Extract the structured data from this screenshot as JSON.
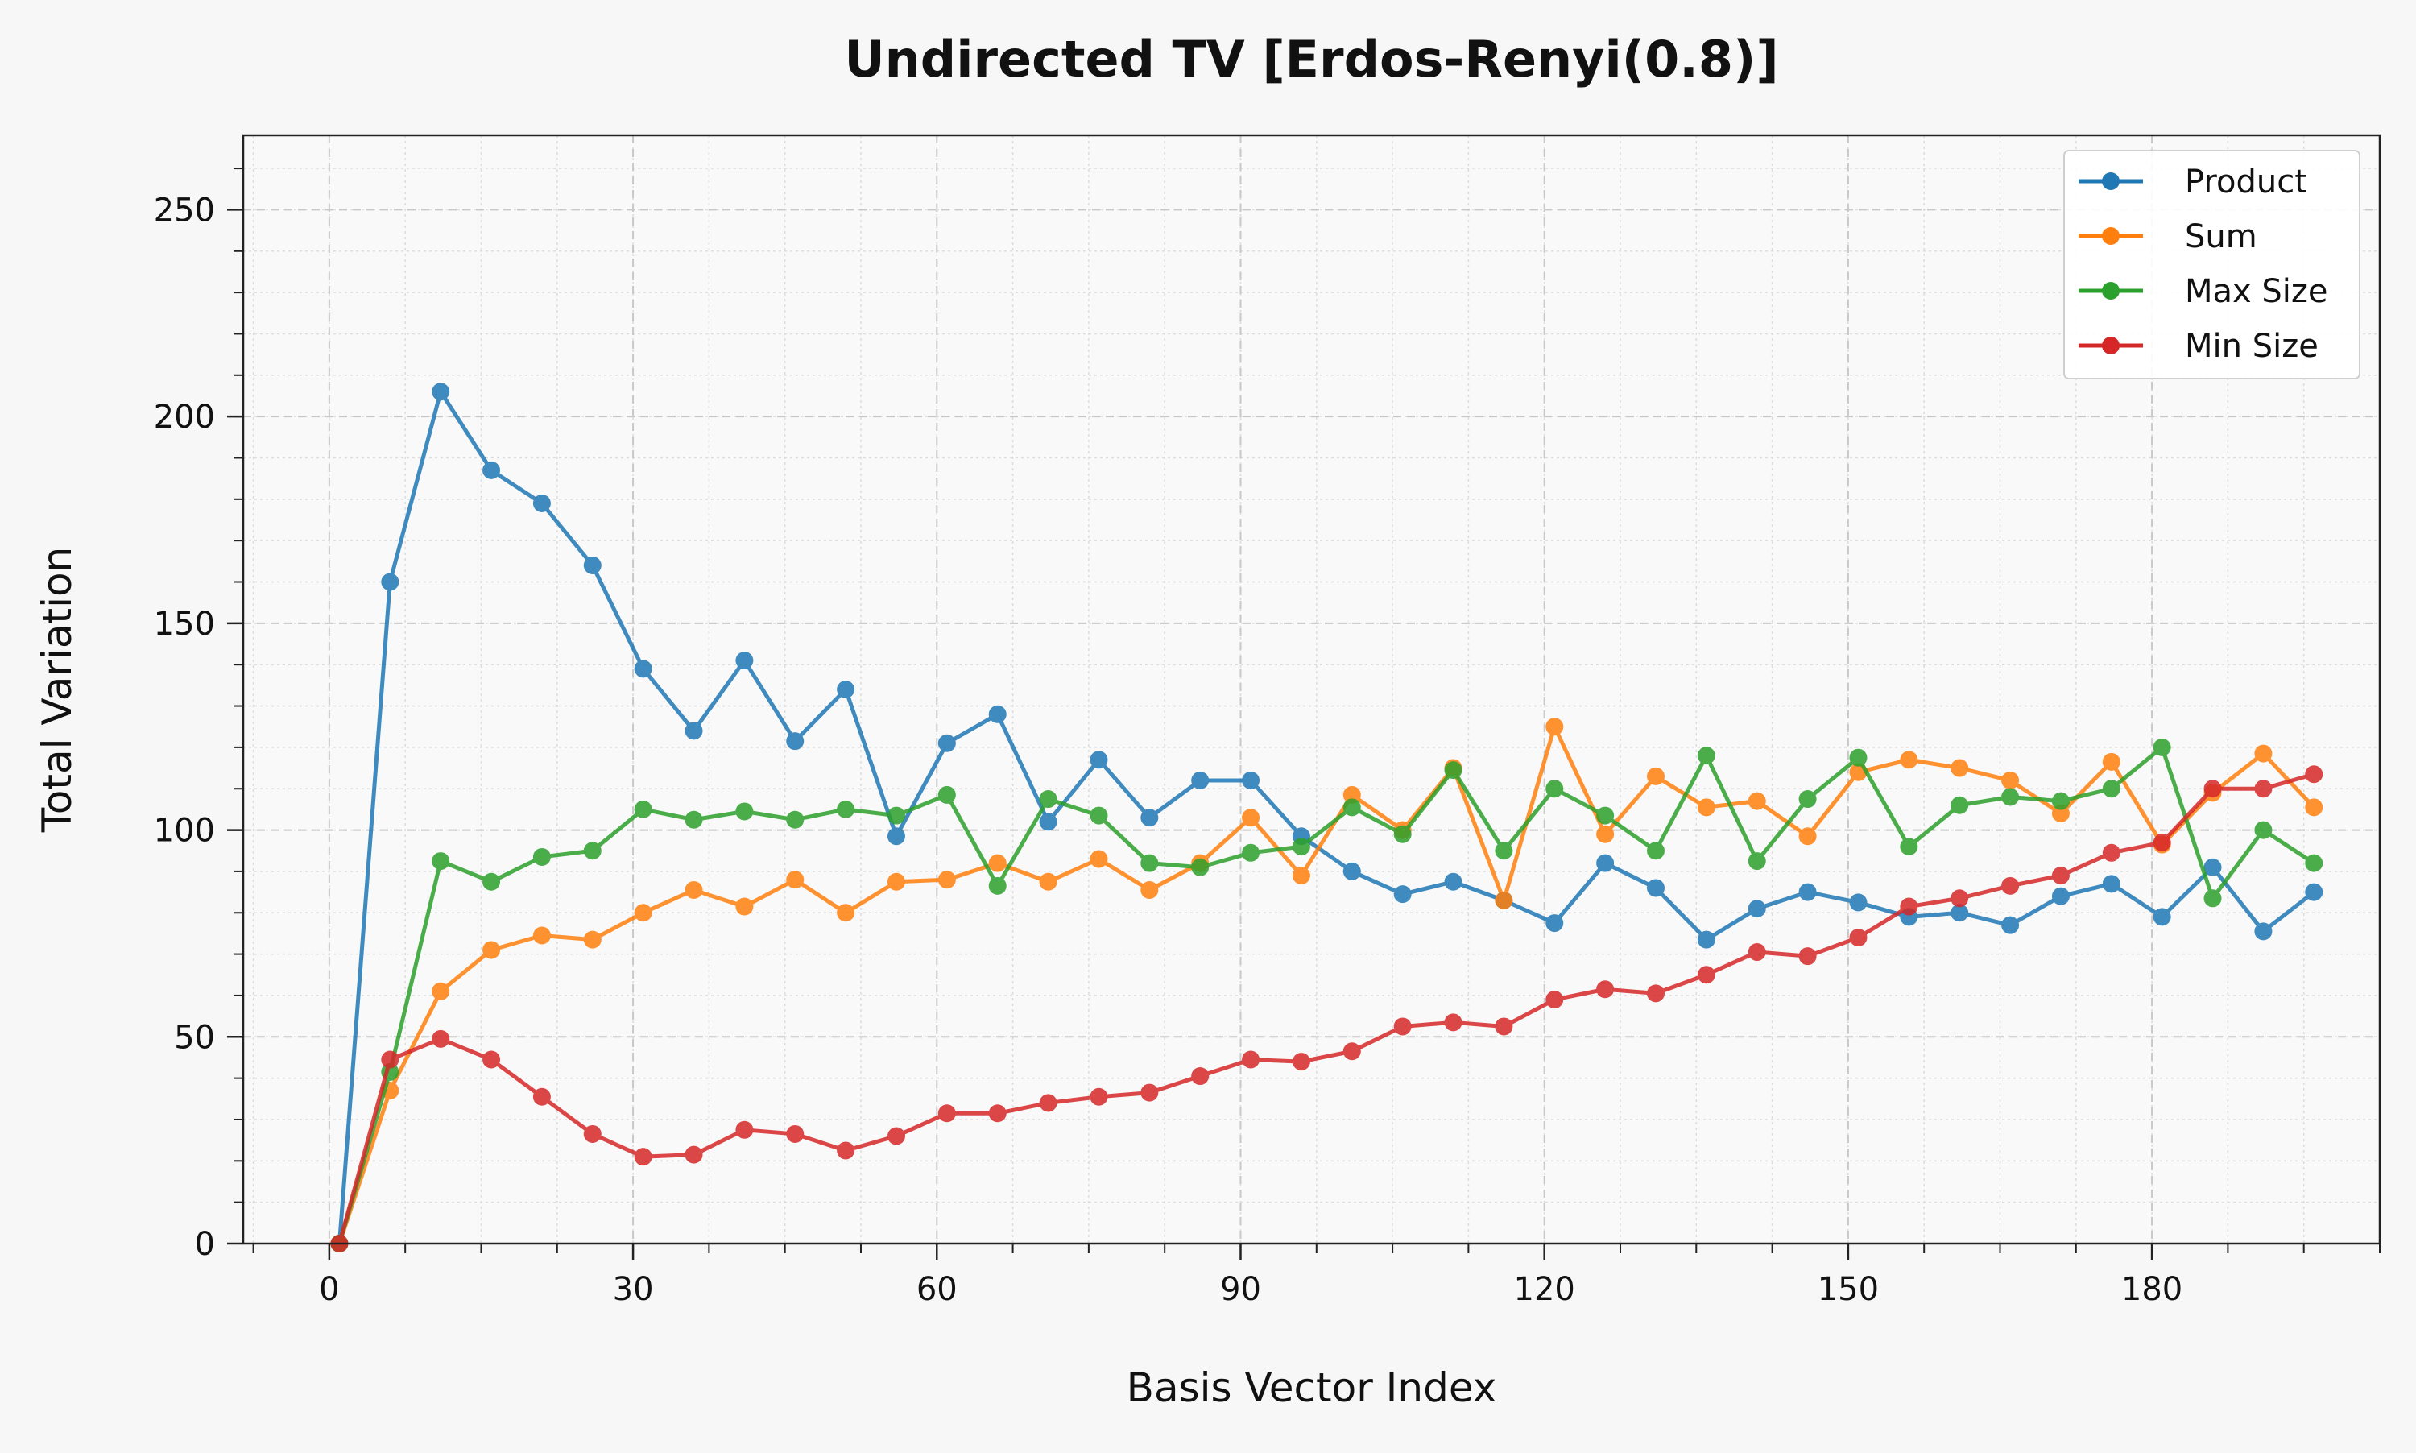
{
  "chart_data": {
    "type": "line",
    "title": "Undirected TV [Erdos-Renyi(0.8)]",
    "xlabel": "Basis Vector Index",
    "ylabel": "Total Variation",
    "xlim": [
      -8.5,
      202.5
    ],
    "ylim": [
      0,
      268
    ],
    "xticks": [
      0,
      30,
      60,
      90,
      120,
      150,
      180
    ],
    "yticks": [
      0,
      50,
      100,
      150,
      200,
      250
    ],
    "grid": true,
    "legend_position": "top-right",
    "x": [
      1,
      6,
      11,
      16,
      21,
      26,
      31,
      36,
      41,
      46,
      51,
      56,
      61,
      66,
      71,
      76,
      81,
      86,
      91,
      96,
      101,
      106,
      111,
      116,
      121,
      126,
      131,
      136,
      141,
      146,
      151,
      156,
      161,
      166,
      171,
      176,
      181,
      186,
      191,
      196
    ],
    "series": [
      {
        "name": "Product",
        "color": "#1f77b4",
        "values": [
          0,
          160,
          206,
          187,
          179,
          164,
          139,
          124,
          141,
          121.5,
          134,
          98.5,
          121,
          128,
          102,
          117,
          103,
          112,
          112,
          98.5,
          90,
          84.5,
          87.5,
          83,
          77.5,
          92,
          86,
          73.5,
          81,
          85,
          82.5,
          79,
          80,
          77,
          84,
          87,
          79,
          91,
          75.5,
          85
        ]
      },
      {
        "name": "Sum",
        "color": "#ff7f0e",
        "values": [
          0,
          37,
          61,
          71,
          74.5,
          73.5,
          80,
          85.5,
          81.5,
          88,
          80,
          87.5,
          88,
          92,
          87.5,
          93,
          85.5,
          92,
          103,
          89,
          108.5,
          100,
          115,
          83,
          125,
          99,
          113,
          105.5,
          107,
          98.5,
          114,
          117,
          115,
          112,
          104,
          116.5,
          96.5,
          109,
          118.5,
          105.5
        ]
      },
      {
        "name": "Max Size",
        "color": "#2ca02c",
        "values": [
          0,
          41.5,
          92.5,
          87.5,
          93.5,
          95,
          105,
          102.5,
          104.5,
          102.5,
          105,
          103.5,
          108.5,
          86.5,
          107.5,
          103.5,
          92,
          91,
          94.5,
          96,
          105.5,
          99,
          114.5,
          95,
          110,
          103.5,
          95,
          118,
          92.5,
          107.5,
          117.5,
          96,
          106,
          108,
          107,
          110,
          120,
          83.5,
          100,
          92
        ]
      },
      {
        "name": "Min Size",
        "color": "#d62728",
        "values": [
          0,
          44.5,
          49.5,
          44.5,
          35.5,
          26.5,
          21,
          21.5,
          27.5,
          26.5,
          22.5,
          26,
          31.5,
          31.5,
          34,
          35.5,
          36.5,
          40.5,
          44.5,
          44,
          46.5,
          52.5,
          53.5,
          52.5,
          59,
          61.5,
          60.5,
          65,
          70.5,
          69.5,
          74,
          81.5,
          83.5,
          86.5,
          89,
          94.5,
          97,
          110,
          110,
          113.5
        ]
      }
    ]
  }
}
